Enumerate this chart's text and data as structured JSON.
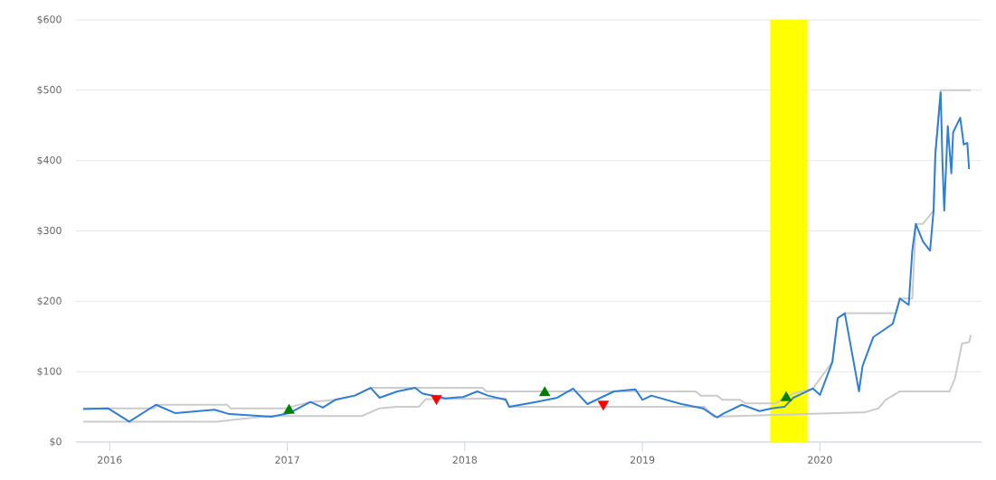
{
  "chart_data": {
    "type": "line",
    "xlim": [
      2015.81,
      2020.91
    ],
    "ylim": [
      0,
      600
    ],
    "xticks": [
      2016,
      2017,
      2018,
      2019,
      2020
    ],
    "yticks": [
      {
        "value": 0,
        "label": "$0"
      },
      {
        "value": 100,
        "label": "$100"
      },
      {
        "value": 200,
        "label": "$200"
      },
      {
        "value": 300,
        "label": "$300"
      },
      {
        "value": 400,
        "label": "$400"
      },
      {
        "value": 500,
        "label": "$500"
      },
      {
        "value": 600,
        "label": "$600"
      }
    ],
    "grid": "y",
    "bands": [
      {
        "axis": "x",
        "from": 2019.72,
        "to": 2019.93,
        "color": "#ffff00"
      }
    ],
    "series": [
      {
        "color": "#cccccc",
        "x": [
          2015.85,
          2016.25,
          2016.27,
          2016.66,
          2016.68,
          2016.99,
          2017.13,
          2017.27,
          2017.38,
          2017.47,
          2018.1,
          2018.12,
          2019.3,
          2019.33,
          2019.42,
          2019.45,
          2019.55,
          2019.58,
          2019.75,
          2019.85,
          2019.96,
          2020.07,
          2020.1,
          2020.14,
          2020.43,
          2020.45,
          2020.52,
          2020.54,
          2020.58,
          2020.64,
          2020.65,
          2020.68,
          2020.85
        ],
        "values": [
          48,
          48,
          53,
          53,
          48,
          48,
          57,
          60,
          66,
          77,
          77,
          72,
          72,
          66,
          66,
          60,
          60,
          55,
          55,
          69,
          76,
          114,
          176,
          183,
          183,
          204,
          204,
          310,
          310,
          329,
          410,
          500,
          500
        ]
      },
      {
        "color": "#cccccc",
        "x": [
          2015.85,
          2016.6,
          2016.9,
          2017.42,
          2017.52,
          2017.62,
          2017.74,
          2017.78,
          2018.23,
          2018.25,
          2019.35,
          2019.4,
          2020.22,
          2020.25,
          2020.33,
          2020.37,
          2020.45,
          2020.73,
          2020.76,
          2020.8,
          2020.84,
          2020.85
        ],
        "values": [
          29,
          29,
          37,
          37,
          48,
          50,
          50,
          61,
          62,
          50,
          50,
          36,
          42,
          42,
          48,
          60,
          72,
          72,
          90,
          140,
          142,
          152
        ]
      },
      {
        "color": "#2f7ed8",
        "x": [
          2015.85,
          2015.99,
          2016.11,
          2016.26,
          2016.37,
          2016.59,
          2016.67,
          2016.91,
          2017.01,
          2017.13,
          2017.2,
          2017.27,
          2017.38,
          2017.47,
          2017.52,
          2017.62,
          2017.72,
          2017.76,
          2017.89,
          2017.99,
          2018.07,
          2018.13,
          2018.23,
          2018.25,
          2018.4,
          2018.52,
          2018.61,
          2018.69,
          2018.84,
          2018.96,
          2019.0,
          2019.05,
          2019.22,
          2019.34,
          2019.42,
          2019.46,
          2019.56,
          2019.66,
          2019.73,
          2019.8,
          2019.85,
          2019.9,
          2019.96,
          2020.0,
          2020.07,
          2020.1,
          2020.14,
          2020.22,
          2020.24,
          2020.3,
          2020.41,
          2020.45,
          2020.5,
          2020.52,
          2020.54,
          2020.58,
          2020.62,
          2020.64,
          2020.65,
          2020.68,
          2020.69,
          2020.7,
          2020.72,
          2020.74,
          2020.75,
          2020.79,
          2020.81,
          2020.83,
          2020.84
        ],
        "values": [
          47,
          48,
          29,
          53,
          41,
          46,
          40,
          36,
          41,
          57,
          49,
          60,
          66,
          77,
          63,
          72,
          77,
          69,
          62,
          64,
          72,
          66,
          60,
          50,
          57,
          63,
          76,
          54,
          72,
          75,
          60,
          66,
          54,
          48,
          35,
          41,
          53,
          44,
          48,
          50,
          63,
          69,
          76,
          67,
          114,
          176,
          183,
          72,
          108,
          149,
          168,
          204,
          195,
          272,
          310,
          285,
          272,
          329,
          410,
          497,
          397,
          329,
          449,
          382,
          440,
          461,
          423,
          425,
          388
        ]
      },
      {
        "type": "scatter",
        "marker": "triangle",
        "color": "#008000",
        "x": [
          2017.01,
          2018.45,
          2019.81
        ],
        "values": [
          45,
          70,
          63
        ]
      },
      {
        "type": "scatter",
        "marker": "triangle-down",
        "color": "#ff0000",
        "x": [
          2017.84,
          2018.78
        ],
        "values": [
          62,
          54
        ]
      }
    ]
  }
}
